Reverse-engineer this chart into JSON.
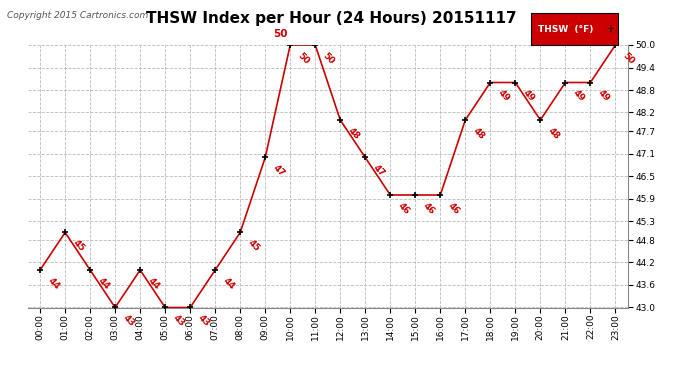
{
  "title": "THSW Index per Hour (24 Hours) 20151117",
  "copyright": "Copyright 2015 Cartronics.com",
  "hours": [
    "00:00",
    "01:00",
    "02:00",
    "03:00",
    "04:00",
    "05:00",
    "06:00",
    "07:00",
    "08:00",
    "09:00",
    "10:00",
    "11:00",
    "12:00",
    "13:00",
    "14:00",
    "15:00",
    "16:00",
    "17:00",
    "18:00",
    "19:00",
    "20:00",
    "21:00",
    "22:00",
    "23:00"
  ],
  "values": [
    44,
    45,
    44,
    43,
    44,
    43,
    43,
    44,
    45,
    47,
    50,
    50,
    48,
    47,
    46,
    46,
    46,
    48,
    49,
    49,
    48,
    49,
    49,
    50
  ],
  "line_color": "#cc0000",
  "marker_color": "#000000",
  "label_color": "#cc0000",
  "background_color": "#ffffff",
  "grid_color": "#bbbbbb",
  "ylim": [
    43.0,
    50.0
  ],
  "yticks": [
    43.0,
    43.6,
    44.2,
    44.8,
    45.3,
    45.9,
    46.5,
    47.1,
    47.7,
    48.2,
    48.8,
    49.4,
    50.0
  ],
  "legend_label": "THSW  (°F)",
  "legend_bg": "#cc0000",
  "legend_fg": "#ffffff",
  "title_fontsize": 11,
  "label_fontsize": 6.5,
  "tick_fontsize": 6.5,
  "copyright_fontsize": 6.5
}
